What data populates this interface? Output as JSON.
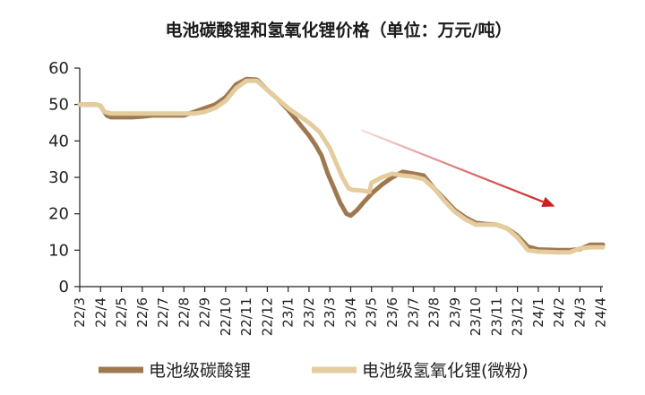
{
  "chart_data": {
    "type": "line",
    "title": "电池碳酸锂和氢氧化锂价格（单位：万元/吨）",
    "categories": [
      "22/3",
      "22/4",
      "22/5",
      "22/6",
      "22/7",
      "22/8",
      "22/9",
      "22/10",
      "22/11",
      "22/12",
      "23/1",
      "23/2",
      "23/3",
      "23/4",
      "23/5",
      "23/6",
      "23/7",
      "23/8",
      "23/9",
      "23/10",
      "23/11",
      "23/12",
      "24/1",
      "24/2",
      "24/3",
      "24/4"
    ],
    "yticks": [
      "0",
      "10",
      "20",
      "30",
      "40",
      "50",
      "60"
    ],
    "ylim": [
      0,
      60
    ],
    "grid": false,
    "legend_position": "bottom",
    "x_range": [
      0,
      25.1
    ],
    "series": [
      {
        "name": "电池级碳酸锂",
        "color": "#a07850",
        "x": [
          0,
          0.8,
          1.0,
          1.3,
          1.5,
          2,
          2.5,
          3,
          3.5,
          4,
          4.5,
          5,
          5.5,
          6,
          6.5,
          7,
          7.5,
          8,
          8.5,
          9,
          9.5,
          10,
          10.5,
          11,
          11.3,
          11.6,
          11.9,
          12.2,
          12.5,
          12.8,
          13,
          13.3,
          13.6,
          14,
          14.5,
          15,
          15.5,
          16,
          16.5,
          17,
          17.5,
          18,
          18.5,
          19,
          19.5,
          20,
          20.5,
          21,
          21.5,
          22,
          22.5,
          23,
          23.5,
          24,
          24.5,
          25,
          25.1
        ],
        "values": [
          50,
          50,
          49.6,
          47,
          46.5,
          46.5,
          46.5,
          46.7,
          47,
          47,
          47,
          47,
          48,
          49,
          50,
          52,
          55.5,
          57,
          56.8,
          54,
          51.5,
          48.5,
          45,
          41.5,
          39,
          36,
          31,
          27,
          23,
          20,
          19.5,
          21,
          23,
          25.5,
          28,
          30,
          31.5,
          31,
          30.5,
          27,
          24,
          21,
          19,
          17.5,
          17.2,
          17,
          16,
          14,
          11,
          10.2,
          10.1,
          10,
          10,
          10.3,
          11.5,
          11.5,
          11.5
        ]
      },
      {
        "name": "电池级氢氧化锂(微粉)",
        "color": "#e3cd9e",
        "x": [
          0,
          0.8,
          1.0,
          1.2,
          1.5,
          2,
          2.5,
          3,
          3.5,
          4,
          4.5,
          5,
          5.5,
          6,
          6.5,
          7,
          7.5,
          8,
          8.5,
          9,
          9.5,
          10,
          10.5,
          11,
          11.5,
          12,
          12.3,
          12.6,
          12.9,
          13.1,
          13.3,
          13.6,
          13.9,
          14,
          14.5,
          15,
          15.5,
          16,
          16.5,
          17,
          17.5,
          18,
          18.5,
          19,
          19.5,
          20,
          20.5,
          21,
          21.5,
          22,
          22.5,
          23,
          23.5,
          24,
          24.5,
          25,
          25.1
        ],
        "values": [
          50,
          50,
          49.6,
          48,
          47.5,
          47.5,
          47.5,
          47.5,
          47.5,
          47.5,
          47.5,
          47.5,
          47.5,
          48,
          49,
          51,
          54.5,
          56.5,
          56.5,
          54,
          51.5,
          49,
          47,
          45,
          42.5,
          38,
          34,
          30,
          27,
          26.5,
          26.5,
          26.3,
          26,
          28.5,
          30,
          31,
          30.5,
          30.2,
          29.5,
          27,
          23.5,
          20.5,
          18.5,
          17,
          17,
          17,
          16,
          13.5,
          10,
          9.6,
          9.5,
          9.4,
          9.4,
          10.5,
          10.8,
          10.8,
          10.8
        ]
      }
    ],
    "annotation": {
      "type": "arrow",
      "color": "#cc2020",
      "from": {
        "x": 13.5,
        "y": 43
      },
      "to": {
        "x": 22.8,
        "y": 22
      }
    }
  }
}
